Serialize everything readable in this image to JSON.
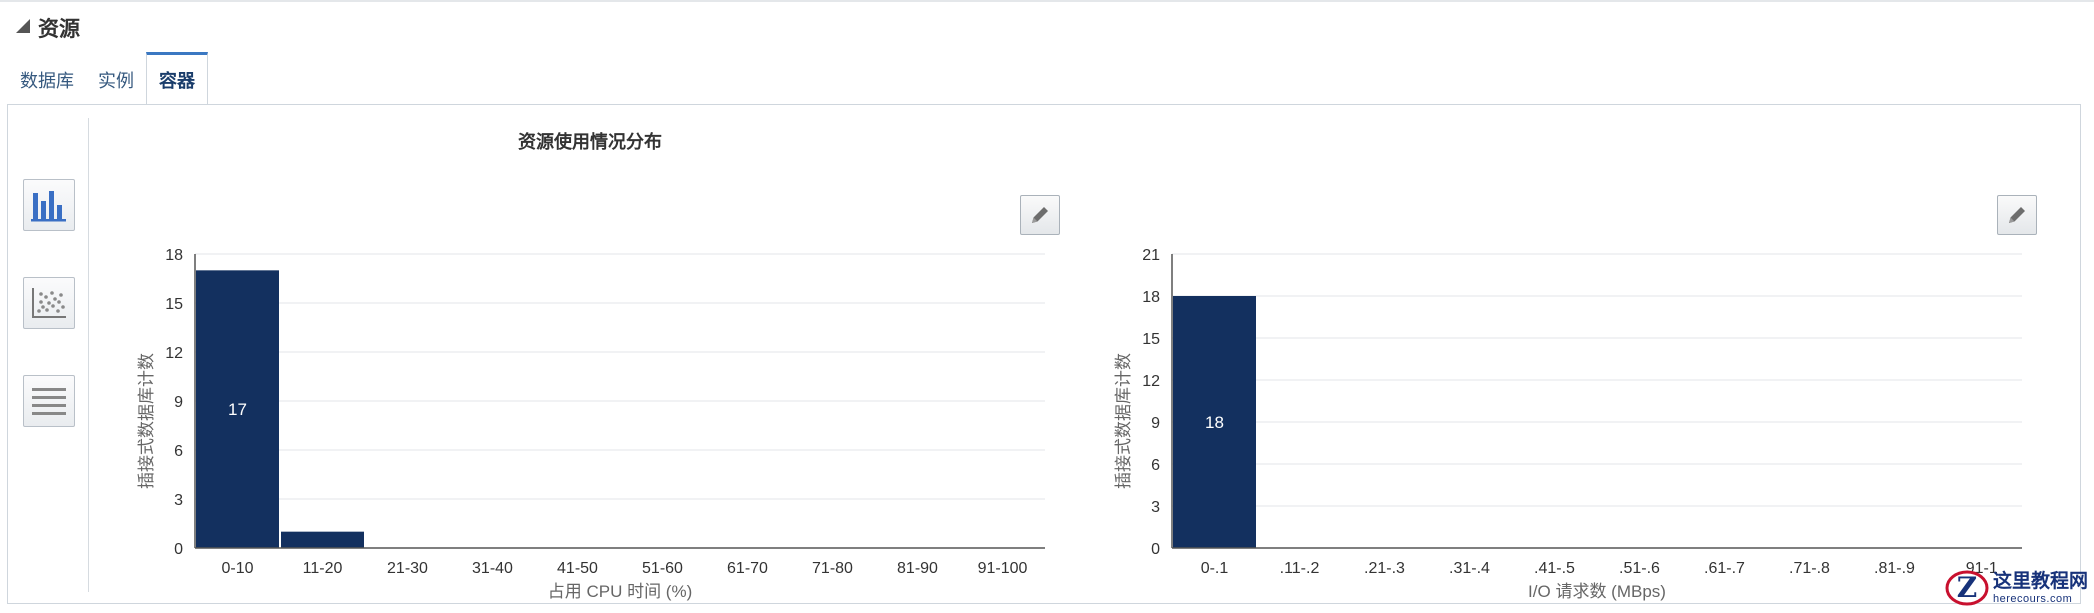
{
  "section": {
    "title": "资源"
  },
  "tabs": [
    {
      "label": "数据库",
      "active": false
    },
    {
      "label": "实例",
      "active": false
    },
    {
      "label": "容器",
      "active": true
    }
  ],
  "toolbar": {
    "buttons": [
      {
        "icon": "bar-chart-icon",
        "selected": true
      },
      {
        "icon": "scatter-chart-icon",
        "selected": false
      },
      {
        "icon": "list-view-icon",
        "selected": false
      }
    ]
  },
  "main_title": "资源使用情况分布",
  "colors": {
    "bar": "#13305f",
    "axis": "#555555",
    "grid": "#e3e6ea",
    "tab_accent": "#3b78c2"
  },
  "chart_data": [
    {
      "type": "bar",
      "title": "",
      "categories": [
        "0-10",
        "11-20",
        "21-30",
        "31-40",
        "41-50",
        "51-60",
        "61-70",
        "71-80",
        "81-90",
        "91-100"
      ],
      "values": [
        17,
        1,
        0,
        0,
        0,
        0,
        0,
        0,
        0,
        0
      ],
      "data_labels": [
        "17",
        "",
        "",
        "",
        "",
        "",
        "",
        "",
        "",
        ""
      ],
      "xlabel": "占用 CPU 时间 (%)",
      "ylabel": "插接式数据库计数",
      "ylim": [
        0,
        18
      ],
      "yticks": [
        "0",
        "3",
        "6",
        "9",
        "12",
        "15",
        "18"
      ],
      "grid": true
    },
    {
      "type": "bar",
      "title": "",
      "categories": [
        "0-.1",
        ".11-.2",
        ".21-.3",
        ".31-.4",
        ".41-.5",
        ".51-.6",
        ".61-.7",
        ".71-.8",
        ".81-.9",
        ".91-1"
      ],
      "values": [
        18,
        0,
        0,
        0,
        0,
        0,
        0,
        0,
        0,
        0
      ],
      "data_labels": [
        "18",
        "",
        "",
        "",
        "",
        "",
        "",
        "",
        "",
        ""
      ],
      "xlabel": "I/O 请求数 (MBps)",
      "ylabel": "插接式数据库计数",
      "ylim": [
        0,
        21
      ],
      "yticks": [
        "0",
        "3",
        "6",
        "9",
        "12",
        "15",
        "18",
        "21"
      ],
      "grid": true
    }
  ],
  "watermark": {
    "cn": "这里教程网",
    "en": "herecours.com"
  }
}
